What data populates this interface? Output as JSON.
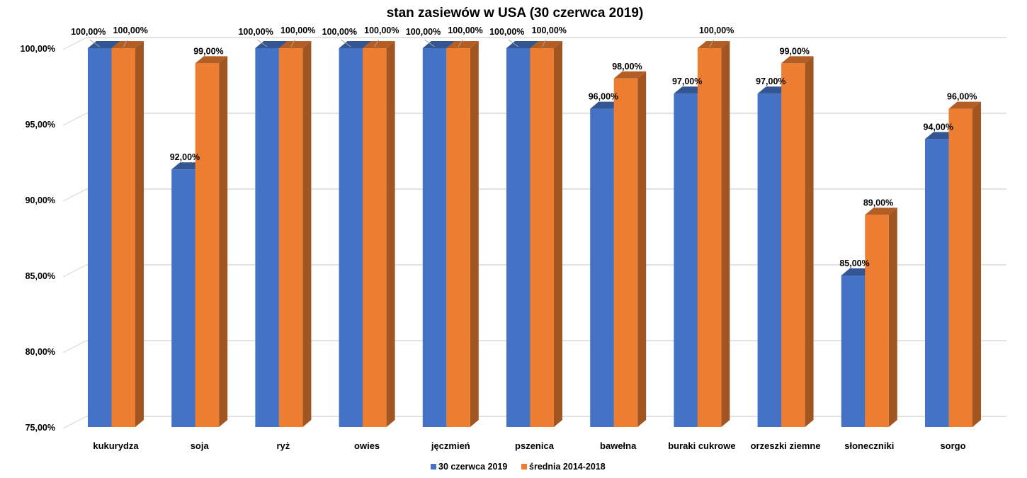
{
  "chart_data": {
    "type": "bar",
    "style": "3d-clustered-column",
    "title": "stan zasiewów w USA (30 czerwca 2019)",
    "xlabel": "",
    "ylabel": "",
    "ylim": [
      75,
      100
    ],
    "y_ticks": [
      "75,00%",
      "80,00%",
      "85,00%",
      "90,00%",
      "95,00%",
      "100,00%"
    ],
    "y_tick_values": [
      75,
      80,
      85,
      90,
      95,
      100
    ],
    "grid": true,
    "legend_position": "bottom",
    "categories": [
      "kukurydza",
      "soja",
      "ryż",
      "owies",
      "jęczmień",
      "pszenica",
      "bawełna",
      "buraki cukrowe",
      "orzeszki ziemne",
      "słoneczniki",
      "sorgo"
    ],
    "series": [
      {
        "name": "30 czerwca 2019",
        "color": "#4472C4",
        "values": [
          100,
          92,
          100,
          100,
          100,
          100,
          96,
          97,
          97,
          85,
          94
        ],
        "labels": [
          "100,00%",
          "92,00%",
          "100,00%",
          "100,00%",
          "100,00%",
          "100,00%",
          "96,00%",
          "97,00%",
          "97,00%",
          "85,00%",
          "94,00%"
        ]
      },
      {
        "name": "średnia 2014-2018",
        "color": "#ED7D31",
        "values": [
          100,
          99,
          100,
          100,
          100,
          100,
          98,
          100,
          99,
          89,
          96
        ],
        "labels": [
          "100,00%",
          "99,00%",
          "100,00%",
          "100,00%",
          "100,00%",
          "100,00%",
          "98,00%",
          "100,00%",
          "99,00%",
          "89,00%",
          "96,00%"
        ]
      }
    ]
  }
}
